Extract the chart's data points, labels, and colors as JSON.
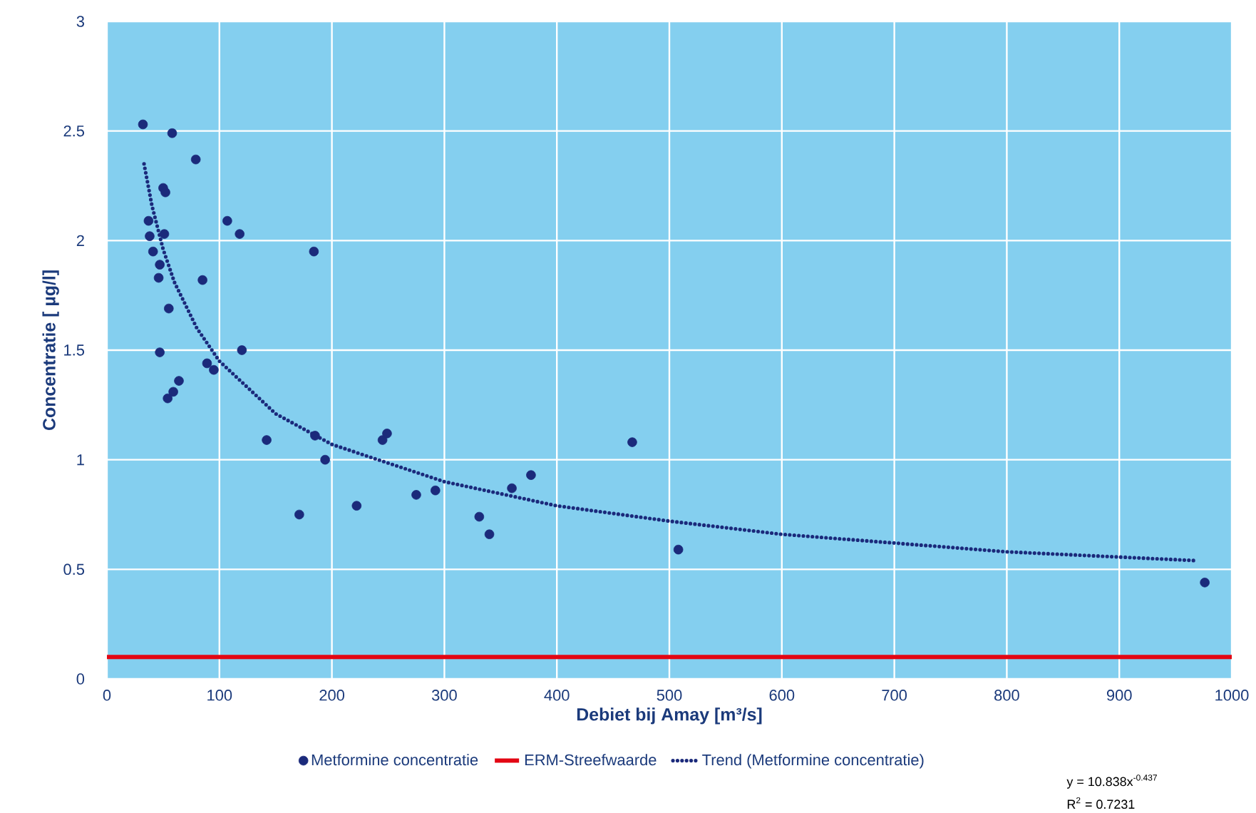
{
  "chart_data": {
    "type": "scatter",
    "xlabel": "Debiet bij Amay [m³/s]",
    "ylabel": "Concentratie [ µg/l]",
    "xlim": [
      0,
      1000
    ],
    "xticks": [
      0,
      100,
      200,
      300,
      400,
      500,
      600,
      700,
      800,
      900,
      1000
    ],
    "ylim": [
      0,
      3
    ],
    "yticks": [
      0,
      0.5,
      1,
      1.5,
      2,
      2.5,
      3
    ],
    "grid": true,
    "legend": "bottom",
    "series": [
      {
        "name": "Metformine concentratie",
        "marker": "circle",
        "color": "#1b2a7b",
        "x": [
          32,
          58,
          79,
          50,
          52,
          107,
          118,
          37,
          38,
          51,
          184,
          41,
          47,
          46,
          85,
          55,
          120,
          47,
          89,
          95,
          64,
          59,
          54,
          142,
          185,
          194,
          171,
          245,
          249,
          222,
          275,
          292,
          331,
          340,
          360,
          377,
          467,
          508,
          976
        ],
        "values": [
          2.53,
          2.49,
          2.37,
          2.24,
          2.22,
          2.09,
          2.03,
          2.09,
          2.02,
          2.03,
          1.95,
          1.95,
          1.89,
          1.83,
          1.82,
          1.69,
          1.5,
          1.49,
          1.44,
          1.41,
          1.36,
          1.31,
          1.28,
          1.09,
          1.11,
          1.0,
          0.75,
          1.09,
          1.12,
          0.79,
          0.84,
          0.86,
          0.74,
          0.66,
          0.87,
          0.93,
          1.08,
          0.59,
          0.44
        ]
      },
      {
        "name": "ERM-Streefwaarde",
        "type": "line",
        "marker": "none",
        "line_style": "solid",
        "color": "#e30613",
        "x": [
          0,
          1000
        ],
        "values": [
          0.1,
          0.1
        ]
      },
      {
        "name": "Trend (Metformine concentratie)",
        "type": "line",
        "marker": "none",
        "line_style": "dotted",
        "color": "#1b2a7b",
        "x": [
          33,
          40,
          50,
          60,
          80,
          100,
          150,
          200,
          300,
          400,
          500,
          600,
          700,
          800,
          968
        ],
        "values": [
          2.35,
          2.16,
          1.96,
          1.81,
          1.6,
          1.45,
          1.21,
          1.07,
          0.9,
          0.79,
          0.72,
          0.66,
          0.62,
          0.58,
          0.54
        ]
      }
    ],
    "annotations": [
      "y = 10.838x$^{-0.437}$",
      "R$^{2}$ = 0.7231"
    ]
  }
}
